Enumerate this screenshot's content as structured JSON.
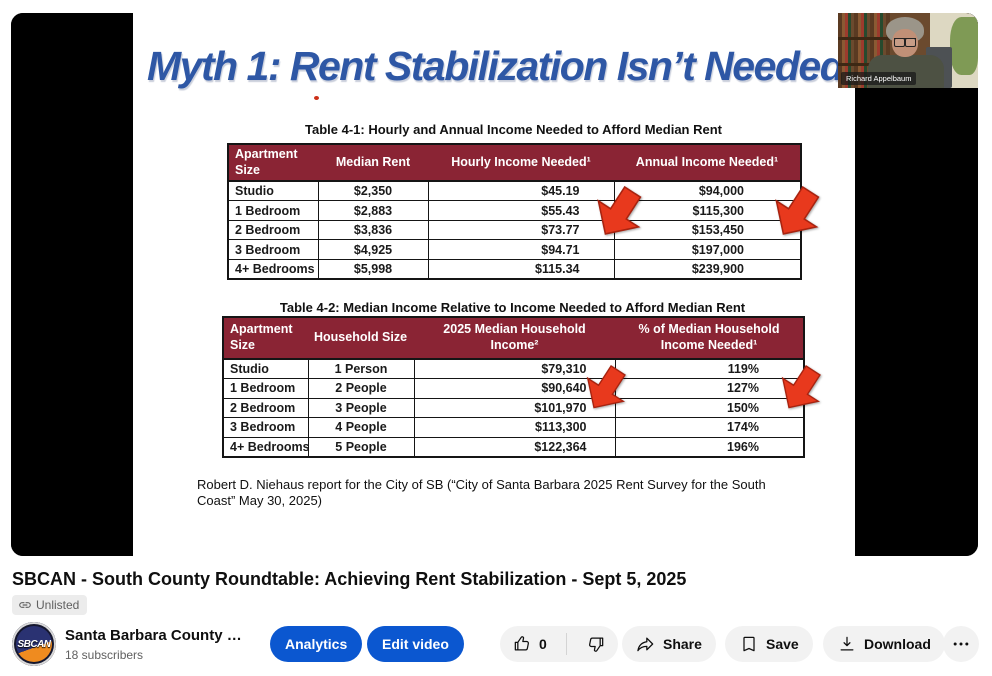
{
  "player": {
    "slide": {
      "title": "Myth 1: Rent Stabilization Isn’t Needed",
      "table1": {
        "caption": "Table 4-1: Hourly and Annual Income Needed to Afford Median Rent",
        "headers": [
          "Apartment Size",
          "Median Rent",
          "Hourly Income Needed¹",
          "Annual Income Needed¹"
        ],
        "rows": [
          [
            "Studio",
            "$2,350",
            "$45.19",
            "$94,000"
          ],
          [
            "1 Bedroom",
            "$2,883",
            "$55.43",
            "$115,300"
          ],
          [
            "2 Bedroom",
            "$3,836",
            "$73.77",
            "$153,450"
          ],
          [
            "3 Bedroom",
            "$4,925",
            "$94.71",
            "$197,000"
          ],
          [
            "4+ Bedrooms",
            "$5,998",
            "$115.34",
            "$239,900"
          ]
        ]
      },
      "table2": {
        "caption": "Table 4-2: Median Income Relative to Income Needed to Afford Median Rent",
        "headers": [
          "Apartment Size",
          "Household Size",
          "2025 Median Household Income²",
          "% of Median Household Income Needed¹"
        ],
        "rows": [
          [
            "Studio",
            "1 Person",
            "$79,310",
            "119%"
          ],
          [
            "1 Bedroom",
            "2 People",
            "$90,640",
            "127%"
          ],
          [
            "2 Bedroom",
            "3 People",
            "$101,970",
            "150%"
          ],
          [
            "3 Bedroom",
            "4 People",
            "$113,300",
            "174%"
          ],
          [
            "4+ Bedrooms",
            "5 People",
            "$122,364",
            "196%"
          ]
        ]
      },
      "citation": "Robert D. Niehaus report for the City of SB (“City of Santa Barbara 2025 Rent Survey for the South Coast” May 30, 2025)"
    },
    "webcam": {
      "speaker_name": "Richard Appelbaum"
    }
  },
  "video": {
    "title": "SBCAN - South County Roundtable: Achieving Rent Stabilization - Sept 5, 2025",
    "visibility": "Unlisted"
  },
  "channel": {
    "name": "Santa Barbara County …",
    "subscribers": "18 subscribers",
    "avatar_text": "SBCAN"
  },
  "actions": {
    "analytics": "Analytics",
    "edit_video": "Edit video",
    "like_count": "0",
    "share": "Share",
    "save": "Save",
    "download": "Download"
  },
  "colors": {
    "accent_blue": "#0b57d0",
    "table_header_maroon": "#8a2434",
    "slide_title_blue": "#2e57a5",
    "arrow_red": "#e8391d"
  }
}
